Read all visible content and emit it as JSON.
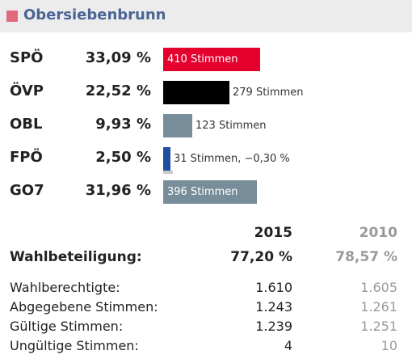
{
  "header": {
    "title": "Obersiebenbrunn",
    "accent": "#e06a7c",
    "title_color": "#4a6496"
  },
  "results": [
    {
      "party": "SPÖ",
      "percent": "33,09 %",
      "votes_label": "410 Stimmen",
      "share": 0.3309,
      "color": "#e3002c",
      "label_inside": true
    },
    {
      "party": "ÖVP",
      "percent": "22,52 %",
      "votes_label": "279 Stimmen",
      "share": 0.2252,
      "color": "#000000",
      "label_inside": false
    },
    {
      "party": "OBL",
      "percent": "9,93 %",
      "votes_label": "123 Stimmen",
      "share": 0.0993,
      "color": "#778e9a",
      "label_inside": false
    },
    {
      "party": "FPÖ",
      "percent": "2,50 %",
      "votes_label": "31 Stimmen, −0,30 %",
      "share": 0.025,
      "color": "#1f4fa0",
      "label_inside": false,
      "previous_share": 0.028
    },
    {
      "party": "GO7",
      "percent": "31,96 %",
      "votes_label": "396 Stimmen",
      "share": 0.3196,
      "color": "#778e9a",
      "label_inside": true
    }
  ],
  "stats": {
    "year_current": "2015",
    "year_previous": "2010",
    "rows": [
      {
        "label": "Wahlbeteiligung:",
        "current": "77,20 %",
        "previous": "78,57 %",
        "bold": true
      },
      {
        "label": "Wahlberechtigte:",
        "current": "1.610",
        "previous": "1.605",
        "bold": false
      },
      {
        "label": "Abgegebene Stimmen:",
        "current": "1.243",
        "previous": "1.261",
        "bold": false
      },
      {
        "label": "Gültige Stimmen:",
        "current": "1.239",
        "previous": "1.251",
        "bold": false
      },
      {
        "label": "Ungültige Stimmen:",
        "current": "4",
        "previous": "10",
        "bold": false
      }
    ]
  }
}
